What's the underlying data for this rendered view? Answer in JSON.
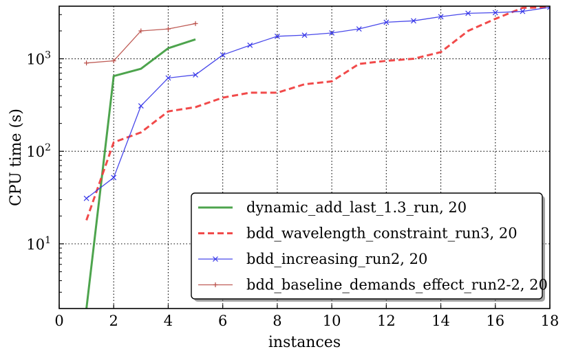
{
  "chart_data": {
    "type": "line",
    "title": "",
    "xlabel": "instances",
    "ylabel": "CPU time (s)",
    "xlim": [
      0,
      18
    ],
    "ylim": [
      2,
      3700
    ],
    "yscale": "log",
    "grid": true,
    "legend_position": "bottom-right",
    "x_ticks": [
      0,
      2,
      4,
      6,
      8,
      10,
      12,
      14,
      16,
      18
    ],
    "x_tick_labels": [
      "0",
      "2",
      "4",
      "6",
      "8",
      "10",
      "12",
      "14",
      "16",
      "18"
    ],
    "y_ticks": [
      10,
      100,
      1000
    ],
    "y_tick_labels": [
      {
        "base": "10",
        "exp": "1"
      },
      {
        "base": "10",
        "exp": "2"
      },
      {
        "base": "10",
        "exp": "3"
      }
    ],
    "series": [
      {
        "name": "dynamic_add_last_1.3_run, 20",
        "color": "#3a9a3a",
        "style": "solid",
        "marker": "none",
        "x": [
          1,
          2,
          3,
          4,
          5
        ],
        "y": [
          2,
          650,
          780,
          1300,
          1620
        ]
      },
      {
        "name": "bdd_wavelength_constraint_run3, 20",
        "color": "#f04040",
        "style": "dashed",
        "marker": "none",
        "x": [
          1,
          2,
          3,
          4,
          5,
          6,
          7,
          8,
          9,
          10,
          11,
          12,
          13,
          14,
          15,
          16,
          17,
          18
        ],
        "y": [
          18,
          125,
          160,
          270,
          300,
          380,
          430,
          430,
          530,
          570,
          880,
          950,
          1000,
          1180,
          2000,
          2700,
          3550,
          3600
        ]
      },
      {
        "name": "bdd_increasing_run2, 20",
        "color": "#3434e8",
        "style": "solid",
        "marker": "x",
        "x": [
          1,
          2,
          3,
          4,
          5,
          6,
          7,
          8,
          9,
          10,
          11,
          12,
          13,
          14,
          15,
          16,
          17,
          18
        ],
        "y": [
          31,
          52,
          310,
          620,
          670,
          1100,
          1400,
          1750,
          1800,
          1900,
          2100,
          2480,
          2570,
          2850,
          3100,
          3150,
          3250,
          3600
        ]
      },
      {
        "name": "bdd_baseline_demands_effect_run2-2, 20",
        "color": "#b84a44",
        "style": "solid",
        "marker": "+",
        "x": [
          1,
          2,
          3,
          4,
          5
        ],
        "y": [
          900,
          950,
          2000,
          2100,
          2400
        ]
      }
    ]
  }
}
